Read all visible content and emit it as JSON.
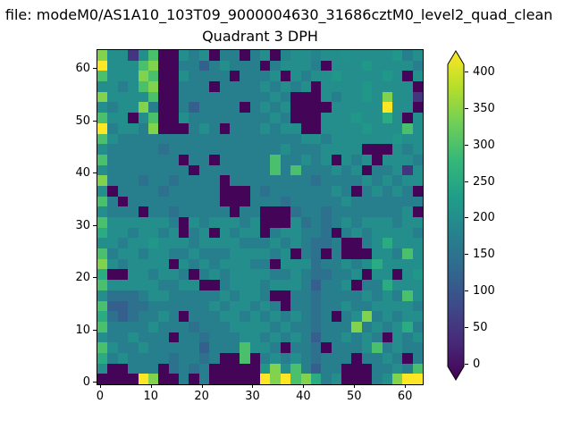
{
  "figure": {
    "suptitle": "a file: modeM0/AS1A10_103T09_9000004630_31686cztM0_level2_quad_clean",
    "title": "Quadrant 3 DPH"
  },
  "chart_data": {
    "type": "heatmap",
    "title": "Quadrant 3 DPH",
    "suptitle_visible_text": "a file: modeM0/AS1A10_103T09_9000004630_31686cztM0_level2_quad_clean",
    "colormap": "viridis",
    "x_ticks": [
      0,
      10,
      20,
      30,
      40,
      50,
      60
    ],
    "y_ticks": [
      0,
      10,
      20,
      30,
      40,
      50,
      60
    ],
    "x_range": [
      0,
      64
    ],
    "y_range": [
      0,
      64
    ],
    "grid_on": false,
    "colorbar": {
      "position": "right",
      "ticks": [
        0,
        50,
        100,
        150,
        200,
        250,
        300,
        350,
        400
      ],
      "range": [
        -4,
        410
      ],
      "extend": "both"
    },
    "grid": {
      "rows": 32,
      "cols": 32,
      "note": "estimated 2x2 downsample of the 64x64 DPH pixel map; row 0 = top edge (y=63), col 0 = left edge (x=0); values in colorbar units",
      "values": [
        [
          330,
          200,
          200,
          60,
          200,
          290,
          0,
          0,
          200,
          175,
          200,
          0,
          175,
          175,
          0,
          175,
          200,
          0,
          185,
          200,
          200,
          185,
          200,
          200,
          205,
          200,
          200,
          200,
          200,
          215,
          175,
          200
        ],
        [
          420,
          200,
          200,
          200,
          290,
          330,
          0,
          0,
          175,
          175,
          120,
          175,
          200,
          175,
          175,
          175,
          0,
          175,
          200,
          200,
          200,
          175,
          0,
          200,
          200,
          200,
          215,
          200,
          200,
          200,
          200,
          175
        ],
        [
          290,
          200,
          200,
          200,
          330,
          290,
          0,
          0,
          200,
          175,
          175,
          175,
          175,
          0,
          175,
          175,
          175,
          200,
          0,
          200,
          175,
          200,
          200,
          215,
          200,
          200,
          200,
          200,
          215,
          200,
          0,
          200
        ],
        [
          200,
          200,
          175,
          200,
          290,
          330,
          0,
          0,
          175,
          175,
          175,
          0,
          175,
          175,
          175,
          175,
          200,
          175,
          200,
          175,
          200,
          0,
          200,
          200,
          200,
          200,
          215,
          200,
          200,
          200,
          200,
          0
        ],
        [
          330,
          200,
          200,
          200,
          200,
          290,
          0,
          0,
          175,
          175,
          175,
          175,
          175,
          175,
          175,
          175,
          175,
          200,
          175,
          0,
          0,
          0,
          200,
          175,
          200,
          200,
          215,
          200,
          330,
          200,
          200,
          60
        ],
        [
          200,
          175,
          200,
          200,
          330,
          175,
          0,
          0,
          175,
          120,
          175,
          175,
          175,
          175,
          0,
          175,
          200,
          175,
          200,
          0,
          0,
          0,
          0,
          200,
          200,
          200,
          200,
          200,
          420,
          200,
          200,
          0
        ],
        [
          290,
          200,
          200,
          0,
          200,
          290,
          0,
          0,
          200,
          175,
          175,
          175,
          175,
          175,
          175,
          175,
          175,
          200,
          175,
          0,
          0,
          0,
          200,
          200,
          200,
          215,
          200,
          200,
          250,
          200,
          0,
          200
        ],
        [
          420,
          175,
          200,
          200,
          175,
          330,
          0,
          0,
          0,
          175,
          200,
          175,
          0,
          175,
          175,
          175,
          200,
          175,
          200,
          200,
          0,
          0,
          200,
          200,
          200,
          200,
          215,
          200,
          200,
          200,
          290,
          200
        ],
        [
          290,
          200,
          175,
          175,
          175,
          175,
          175,
          175,
          175,
          175,
          175,
          175,
          175,
          175,
          175,
          175,
          175,
          175,
          175,
          175,
          200,
          200,
          175,
          200,
          200,
          200,
          200,
          200,
          200,
          215,
          200,
          200
        ],
        [
          200,
          175,
          175,
          175,
          175,
          175,
          150,
          175,
          175,
          175,
          175,
          175,
          175,
          175,
          175,
          175,
          175,
          175,
          200,
          175,
          175,
          175,
          200,
          200,
          200,
          200,
          0,
          0,
          0,
          200,
          175,
          200
        ],
        [
          290,
          175,
          175,
          175,
          175,
          175,
          175,
          175,
          0,
          175,
          175,
          0,
          175,
          175,
          175,
          175,
          175,
          290,
          175,
          175,
          200,
          175,
          200,
          0,
          200,
          175,
          200,
          0,
          200,
          200,
          200,
          175
        ],
        [
          200,
          175,
          175,
          175,
          175,
          175,
          175,
          175,
          175,
          0,
          175,
          175,
          175,
          175,
          175,
          175,
          175,
          290,
          175,
          290,
          175,
          175,
          175,
          200,
          175,
          200,
          0,
          175,
          175,
          200,
          60,
          200
        ],
        [
          330,
          175,
          175,
          175,
          150,
          175,
          175,
          150,
          175,
          175,
          175,
          175,
          0,
          175,
          175,
          175,
          175,
          175,
          175,
          175,
          175,
          150,
          175,
          175,
          175,
          175,
          200,
          175,
          200,
          175,
          200,
          200
        ],
        [
          200,
          0,
          175,
          175,
          175,
          175,
          150,
          175,
          175,
          175,
          175,
          175,
          0,
          0,
          0,
          175,
          150,
          175,
          175,
          175,
          175,
          175,
          175,
          200,
          175,
          0,
          175,
          200,
          175,
          200,
          175,
          0
        ],
        [
          290,
          175,
          0,
          175,
          175,
          175,
          175,
          175,
          175,
          175,
          175,
          175,
          0,
          0,
          0,
          175,
          175,
          175,
          150,
          175,
          175,
          175,
          175,
          175,
          200,
          175,
          175,
          175,
          175,
          175,
          175,
          175
        ],
        [
          200,
          175,
          175,
          175,
          0,
          175,
          175,
          150,
          175,
          175,
          175,
          175,
          175,
          0,
          175,
          175,
          0,
          0,
          0,
          150,
          175,
          175,
          150,
          175,
          175,
          175,
          175,
          175,
          175,
          175,
          200,
          0
        ],
        [
          290,
          200,
          200,
          200,
          200,
          200,
          200,
          175,
          0,
          200,
          175,
          200,
          200,
          200,
          175,
          200,
          0,
          0,
          0,
          200,
          150,
          175,
          150,
          175,
          200,
          175,
          200,
          200,
          200,
          175,
          200,
          200
        ],
        [
          250,
          200,
          200,
          175,
          200,
          200,
          175,
          200,
          0,
          175,
          200,
          0,
          200,
          175,
          200,
          200,
          0,
          175,
          200,
          200,
          175,
          175,
          150,
          0,
          175,
          200,
          175,
          200,
          200,
          200,
          200,
          175
        ],
        [
          200,
          200,
          175,
          200,
          200,
          215,
          200,
          200,
          200,
          175,
          200,
          200,
          200,
          200,
          175,
          175,
          175,
          200,
          175,
          200,
          175,
          150,
          150,
          175,
          0,
          0,
          175,
          200,
          250,
          200,
          200,
          200
        ],
        [
          290,
          175,
          200,
          200,
          175,
          200,
          200,
          175,
          175,
          200,
          175,
          175,
          175,
          200,
          200,
          200,
          200,
          175,
          200,
          0,
          175,
          150,
          0,
          175,
          0,
          0,
          0,
          200,
          200,
          175,
          290,
          200
        ],
        [
          330,
          200,
          175,
          200,
          200,
          200,
          200,
          0,
          200,
          175,
          200,
          175,
          200,
          200,
          200,
          175,
          175,
          0,
          200,
          200,
          200,
          150,
          175,
          175,
          200,
          175,
          200,
          250,
          200,
          200,
          200,
          200
        ],
        [
          250,
          0,
          0,
          200,
          200,
          175,
          200,
          200,
          175,
          0,
          175,
          200,
          175,
          200,
          200,
          200,
          200,
          175,
          175,
          200,
          175,
          150,
          150,
          175,
          175,
          200,
          0,
          200,
          200,
          0,
          200,
          215
        ],
        [
          290,
          200,
          200,
          200,
          200,
          200,
          175,
          175,
          200,
          200,
          0,
          0,
          175,
          200,
          200,
          200,
          175,
          200,
          200,
          200,
          175,
          120,
          175,
          175,
          200,
          0,
          175,
          175,
          250,
          200,
          200,
          200
        ],
        [
          200,
          150,
          150,
          150,
          175,
          200,
          200,
          175,
          175,
          175,
          175,
          175,
          200,
          175,
          200,
          200,
          175,
          0,
          0,
          175,
          175,
          150,
          175,
          175,
          175,
          175,
          200,
          175,
          200,
          175,
          290,
          200
        ],
        [
          290,
          120,
          120,
          150,
          150,
          175,
          175,
          175,
          175,
          175,
          175,
          200,
          175,
          200,
          200,
          175,
          200,
          175,
          0,
          175,
          175,
          150,
          175,
          175,
          200,
          175,
          175,
          200,
          200,
          200,
          200,
          175
        ],
        [
          250,
          150,
          120,
          150,
          175,
          175,
          200,
          175,
          0,
          175,
          175,
          175,
          200,
          200,
          175,
          200,
          175,
          200,
          175,
          200,
          175,
          150,
          175,
          0,
          175,
          200,
          330,
          175,
          200,
          175,
          200,
          200
        ],
        [
          290,
          175,
          175,
          175,
          175,
          200,
          175,
          175,
          175,
          150,
          175,
          175,
          175,
          200,
          200,
          200,
          200,
          175,
          200,
          175,
          175,
          150,
          175,
          175,
          175,
          330,
          175,
          200,
          175,
          200,
          250,
          175
        ],
        [
          200,
          175,
          175,
          200,
          175,
          175,
          175,
          0,
          175,
          175,
          150,
          175,
          175,
          175,
          200,
          200,
          175,
          200,
          175,
          200,
          175,
          120,
          175,
          175,
          200,
          175,
          200,
          175,
          0,
          200,
          175,
          200
        ],
        [
          290,
          200,
          175,
          175,
          200,
          175,
          175,
          175,
          175,
          175,
          120,
          175,
          175,
          175,
          290,
          200,
          200,
          175,
          0,
          175,
          175,
          150,
          0,
          175,
          175,
          175,
          200,
          290,
          175,
          200,
          175,
          175
        ],
        [
          250,
          175,
          200,
          175,
          175,
          175,
          175,
          150,
          175,
          175,
          150,
          175,
          0,
          0,
          290,
          0,
          175,
          200,
          175,
          200,
          175,
          150,
          175,
          175,
          175,
          0,
          175,
          175,
          200,
          175,
          0,
          175
        ],
        [
          200,
          0,
          0,
          175,
          175,
          175,
          0,
          150,
          175,
          150,
          175,
          0,
          0,
          0,
          0,
          0,
          215,
          330,
          200,
          290,
          175,
          120,
          175,
          175,
          0,
          0,
          0,
          175,
          175,
          200,
          175,
          290
        ],
        [
          0,
          0,
          0,
          0,
          420,
          330,
          0,
          0,
          175,
          0,
          175,
          0,
          0,
          0,
          0,
          0,
          420,
          330,
          420,
          290,
          330,
          250,
          175,
          200,
          0,
          0,
          0,
          175,
          200,
          330,
          420,
          420
        ]
      ]
    }
  },
  "colors": {
    "background": "#ffffff",
    "frame": "#000000",
    "text": "#000000",
    "viridis": [
      "#440154",
      "#482878",
      "#3e4989",
      "#31688e",
      "#26828e",
      "#1f9e89",
      "#35b779",
      "#6ece58",
      "#b5de2b",
      "#fde725"
    ]
  }
}
